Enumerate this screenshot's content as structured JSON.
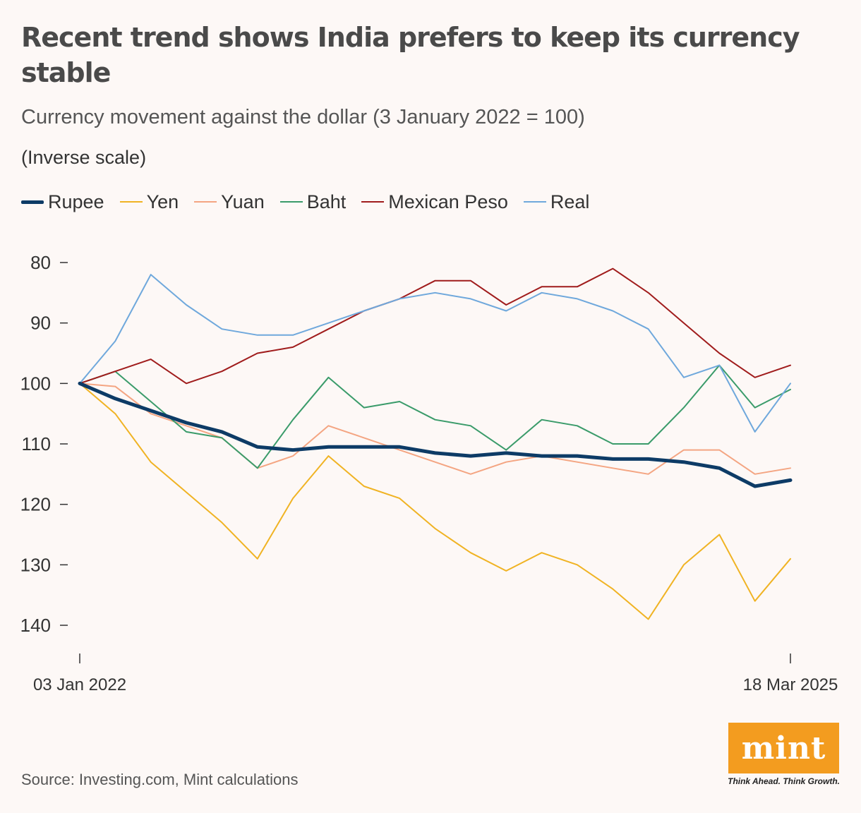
{
  "header": {
    "title": "Recent trend shows India prefers to keep its currency stable",
    "subtitle": "Currency movement against the dollar (3 January 2022 = 100)",
    "note": "(Inverse scale)"
  },
  "footer": {
    "source": "Source: Investing.com, Mint calculations",
    "logo_text": "mint",
    "tagline": "Think Ahead. Think Growth."
  },
  "colors": {
    "background": "#fdf8f6",
    "axis": "#333333",
    "logo": "#f39c1f"
  },
  "chart_data": {
    "type": "line",
    "title": "Recent trend shows India prefers to keep its currency stable",
    "subtitle": "Currency movement against the dollar (3 January 2022 = 100)",
    "ylabel": "(Inverse scale)",
    "y_inverted": true,
    "ylim": [
      80,
      140
    ],
    "yticks": [
      80,
      90,
      100,
      110,
      120,
      130,
      140
    ],
    "xlim": [
      0,
      1
    ],
    "x_tick_positions": [
      0,
      1
    ],
    "x_tick_labels": [
      "03 Jan 2022",
      "18 Mar 2025"
    ],
    "legend_position": "top-left",
    "x": [
      0,
      0.05,
      0.1,
      0.15,
      0.2,
      0.25,
      0.3,
      0.35,
      0.4,
      0.45,
      0.5,
      0.55,
      0.6,
      0.65,
      0.7,
      0.75,
      0.8,
      0.85,
      0.9,
      0.95,
      1
    ],
    "series": [
      {
        "name": "Rupee",
        "color": "#0d3b66",
        "width": 5,
        "values": [
          100,
          102.5,
          104.5,
          106.5,
          108,
          110.5,
          111,
          110.5,
          110.5,
          110.5,
          111.5,
          112,
          111.5,
          112,
          112,
          112.5,
          112.5,
          113,
          114,
          117,
          116
        ]
      },
      {
        "name": "Yen",
        "color": "#f0b323",
        "width": 2,
        "values": [
          100,
          105,
          113,
          118,
          123,
          129,
          119,
          112,
          117,
          119,
          124,
          128,
          131,
          128,
          130,
          134,
          139,
          130,
          125,
          136,
          129
        ]
      },
      {
        "name": "Yuan",
        "color": "#f4a582",
        "width": 2,
        "values": [
          100,
          100.5,
          105,
          107,
          109,
          114,
          112,
          107,
          109,
          111,
          113,
          115,
          113,
          112,
          113,
          114,
          115,
          111,
          111,
          115,
          114
        ]
      },
      {
        "name": "Baht",
        "color": "#3a9b6a",
        "width": 2,
        "values": [
          100,
          98,
          103,
          108,
          109,
          114,
          106,
          99,
          104,
          103,
          106,
          107,
          111,
          106,
          107,
          110,
          110,
          104,
          97,
          104,
          101
        ]
      },
      {
        "name": "Mexican Peso",
        "color": "#a01c1c",
        "width": 2,
        "values": [
          100,
          98,
          96,
          100,
          98,
          95,
          94,
          91,
          88,
          86,
          83,
          83,
          87,
          84,
          84,
          81,
          85,
          90,
          95,
          99,
          97
        ]
      },
      {
        "name": "Real",
        "color": "#6fa8dc",
        "width": 2,
        "values": [
          100,
          93,
          82,
          87,
          91,
          92,
          92,
          90,
          88,
          86,
          85,
          86,
          88,
          85,
          86,
          88,
          91,
          99,
          97,
          108,
          100
        ]
      }
    ]
  }
}
